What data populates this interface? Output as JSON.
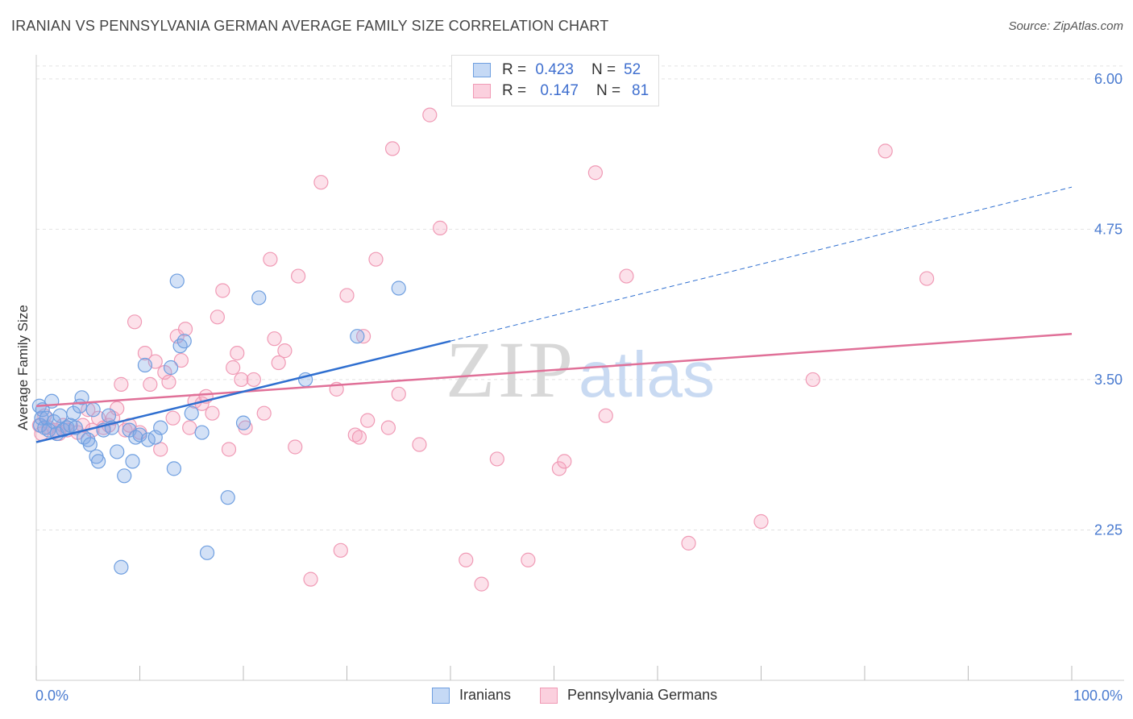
{
  "title": "IRANIAN VS PENNSYLVANIA GERMAN AVERAGE FAMILY SIZE CORRELATION CHART",
  "source": "Source: ZipAtlas.com",
  "watermark": {
    "zip": "ZIP",
    "atlas": "atlas"
  },
  "colors": {
    "iranian": "#6f9fe0",
    "iranian_line": "#2f6fd0",
    "pa_german": "#f09ab5",
    "pa_german_line": "#e07098",
    "axis_text": "#4a7bd0"
  },
  "legend": {
    "rows": [
      {
        "r_label": "R =",
        "r_value": "0.423",
        "n_label": "N =",
        "n_value": "52"
      },
      {
        "r_label": "R =",
        "r_value": "0.147",
        "n_label": "N =",
        "n_value": "81"
      }
    ]
  },
  "bottom_legend": {
    "iranian": "Iranians",
    "pa_german": "Pennsylvania Germans"
  },
  "chart_data": {
    "type": "scatter",
    "xlabel": "",
    "ylabel": "Average Family Size",
    "xlim": [
      0,
      100
    ],
    "ylim": [
      1.0,
      6.2
    ],
    "x_tick_labels": [
      "0.0%",
      "100.0%"
    ],
    "y_ticks": [
      2.25,
      3.5,
      4.75,
      6.0
    ],
    "y_tick_labels": [
      "2.25",
      "3.50",
      "4.75",
      "6.00"
    ],
    "grid": true,
    "series": [
      {
        "name": "Iranians",
        "r": 0.423,
        "n": 52,
        "trend": {
          "x0": 0,
          "y0": 2.98,
          "x1": 40,
          "y1": 3.82,
          "x_end": 100,
          "y_end": 5.1
        },
        "points": [
          [
            0.3,
            3.28
          ],
          [
            0.4,
            3.12
          ],
          [
            0.5,
            3.18
          ],
          [
            0.6,
            3.25
          ],
          [
            0.8,
            3.1
          ],
          [
            1.0,
            3.18
          ],
          [
            1.2,
            3.08
          ],
          [
            1.5,
            3.32
          ],
          [
            1.7,
            3.15
          ],
          [
            2.0,
            3.05
          ],
          [
            2.3,
            3.2
          ],
          [
            2.6,
            3.08
          ],
          [
            3.0,
            3.1
          ],
          [
            3.3,
            3.12
          ],
          [
            3.6,
            3.22
          ],
          [
            3.8,
            3.1
          ],
          [
            4.2,
            3.28
          ],
          [
            4.4,
            3.35
          ],
          [
            4.6,
            3.02
          ],
          [
            5.0,
            3.0
          ],
          [
            5.2,
            2.96
          ],
          [
            5.5,
            3.25
          ],
          [
            5.8,
            2.86
          ],
          [
            6.0,
            2.82
          ],
          [
            6.5,
            3.08
          ],
          [
            7.0,
            3.2
          ],
          [
            7.3,
            3.1
          ],
          [
            7.8,
            2.9
          ],
          [
            8.2,
            1.94
          ],
          [
            8.5,
            2.7
          ],
          [
            9.0,
            3.08
          ],
          [
            9.3,
            2.82
          ],
          [
            9.6,
            3.02
          ],
          [
            10.0,
            3.04
          ],
          [
            10.5,
            3.62
          ],
          [
            10.8,
            3.0
          ],
          [
            11.5,
            3.02
          ],
          [
            12.0,
            3.1
          ],
          [
            13.0,
            3.6
          ],
          [
            13.3,
            2.76
          ],
          [
            13.6,
            4.32
          ],
          [
            13.9,
            3.78
          ],
          [
            14.3,
            3.82
          ],
          [
            15.0,
            3.22
          ],
          [
            16.0,
            3.06
          ],
          [
            16.5,
            2.06
          ],
          [
            18.5,
            2.52
          ],
          [
            20.0,
            3.14
          ],
          [
            21.5,
            4.18
          ],
          [
            26.0,
            3.5
          ],
          [
            31.0,
            3.86
          ],
          [
            35.0,
            4.26
          ]
        ]
      },
      {
        "name": "Pennsylvania Germans",
        "r": 0.147,
        "n": 81,
        "trend": {
          "x0": 0,
          "y0": 3.28,
          "x1": 100,
          "y1": 3.88
        },
        "points": [
          [
            0.3,
            3.12
          ],
          [
            0.5,
            3.05
          ],
          [
            0.8,
            3.2
          ],
          [
            1.2,
            3.1
          ],
          [
            1.8,
            3.08
          ],
          [
            2.2,
            3.05
          ],
          [
            2.6,
            3.12
          ],
          [
            3.0,
            3.08
          ],
          [
            4.0,
            3.06
          ],
          [
            4.5,
            3.12
          ],
          [
            5.0,
            3.25
          ],
          [
            5.4,
            3.08
          ],
          [
            6.0,
            3.18
          ],
          [
            6.5,
            3.1
          ],
          [
            7.0,
            3.12
          ],
          [
            7.4,
            3.18
          ],
          [
            7.8,
            3.26
          ],
          [
            8.2,
            3.46
          ],
          [
            8.6,
            3.08
          ],
          [
            9.0,
            3.12
          ],
          [
            9.5,
            3.98
          ],
          [
            10.0,
            3.06
          ],
          [
            10.5,
            3.72
          ],
          [
            11.0,
            3.46
          ],
          [
            11.5,
            3.65
          ],
          [
            12.0,
            2.92
          ],
          [
            12.4,
            3.56
          ],
          [
            12.8,
            3.48
          ],
          [
            13.2,
            3.18
          ],
          [
            13.6,
            3.86
          ],
          [
            14.0,
            3.66
          ],
          [
            14.4,
            3.92
          ],
          [
            14.8,
            3.1
          ],
          [
            15.3,
            3.32
          ],
          [
            16.0,
            3.3
          ],
          [
            16.4,
            3.36
          ],
          [
            17.0,
            3.22
          ],
          [
            17.5,
            4.02
          ],
          [
            18.0,
            4.24
          ],
          [
            18.6,
            2.92
          ],
          [
            19.0,
            3.6
          ],
          [
            19.4,
            3.72
          ],
          [
            19.8,
            3.5
          ],
          [
            20.2,
            3.1
          ],
          [
            21.0,
            3.5
          ],
          [
            22.0,
            3.22
          ],
          [
            22.6,
            4.5
          ],
          [
            23.0,
            3.84
          ],
          [
            23.4,
            3.64
          ],
          [
            24.0,
            3.74
          ],
          [
            25.0,
            2.94
          ],
          [
            25.3,
            4.36
          ],
          [
            26.5,
            1.84
          ],
          [
            27.5,
            5.14
          ],
          [
            29.0,
            3.42
          ],
          [
            29.4,
            2.08
          ],
          [
            30.0,
            4.2
          ],
          [
            30.8,
            3.04
          ],
          [
            31.2,
            3.02
          ],
          [
            31.6,
            3.86
          ],
          [
            32.0,
            3.16
          ],
          [
            32.8,
            4.5
          ],
          [
            34.0,
            3.1
          ],
          [
            34.4,
            5.42
          ],
          [
            35.0,
            3.38
          ],
          [
            37.0,
            2.96
          ],
          [
            38.0,
            5.7
          ],
          [
            39.0,
            4.76
          ],
          [
            41.5,
            2.0
          ],
          [
            43.0,
            1.8
          ],
          [
            44.5,
            2.84
          ],
          [
            47.5,
            2.0
          ],
          [
            50.5,
            2.76
          ],
          [
            51.0,
            2.82
          ],
          [
            54.0,
            5.22
          ],
          [
            55.0,
            3.2
          ],
          [
            57.0,
            4.36
          ],
          [
            63.0,
            2.14
          ],
          [
            70.0,
            2.32
          ],
          [
            75.0,
            3.5
          ],
          [
            82.0,
            5.4
          ],
          [
            86.0,
            4.34
          ]
        ]
      }
    ]
  }
}
